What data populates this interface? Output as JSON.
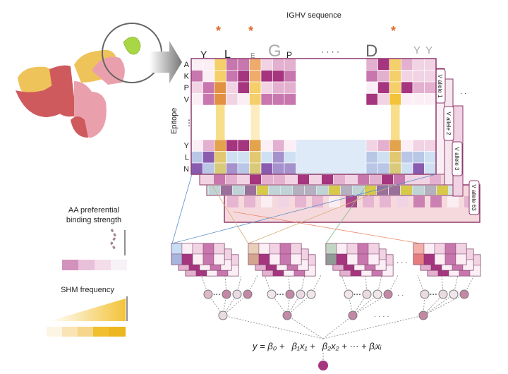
{
  "title": "IGHV sequence",
  "asterisk": "*",
  "ellipsis": "· · · ·",
  "row_dots": "⋮",
  "epitope_label": "Epitope",
  "residue_rows": [
    "A",
    "K",
    "P",
    "V",
    "Y",
    "L",
    "N"
  ],
  "logo_letters": [
    "Y",
    "L",
    "E",
    "G",
    "P",
    "D",
    "Y",
    "Y"
  ],
  "allele_tabs": [
    "V allele 1",
    "V allele 2",
    "V allele 3",
    "V allele 63"
  ],
  "legend": {
    "binding_line1": "AA preferential",
    "binding_line2": "binding strength",
    "shm": "SHM frequency"
  },
  "equation": {
    "y": "y",
    "eq": " = ",
    "terms": [
      "β₀ +",
      "β₁x₁ +",
      "β₂x₂ + ··· + βᵢxᵢ"
    ]
  },
  "colors": {
    "magenta_scale": [
      "#fbeff5",
      "#f1d3e4",
      "#e4b0cf",
      "#c777ad",
      "#a5357f"
    ],
    "blue_scale": [
      "#cfe0f3",
      "#b9c6e6",
      "#a592cc",
      "#8a5cb0"
    ],
    "shm_yellow": "#f3c33a",
    "shm_orange": "#e29042",
    "asterisk": "#e0672c",
    "frame": "#8e3a6e",
    "antigen_green": "#a8d645",
    "heavy_red": "#cf5a5e",
    "light_yellow": "#eec35a",
    "heavy_pink": "#eaa0ac"
  }
}
